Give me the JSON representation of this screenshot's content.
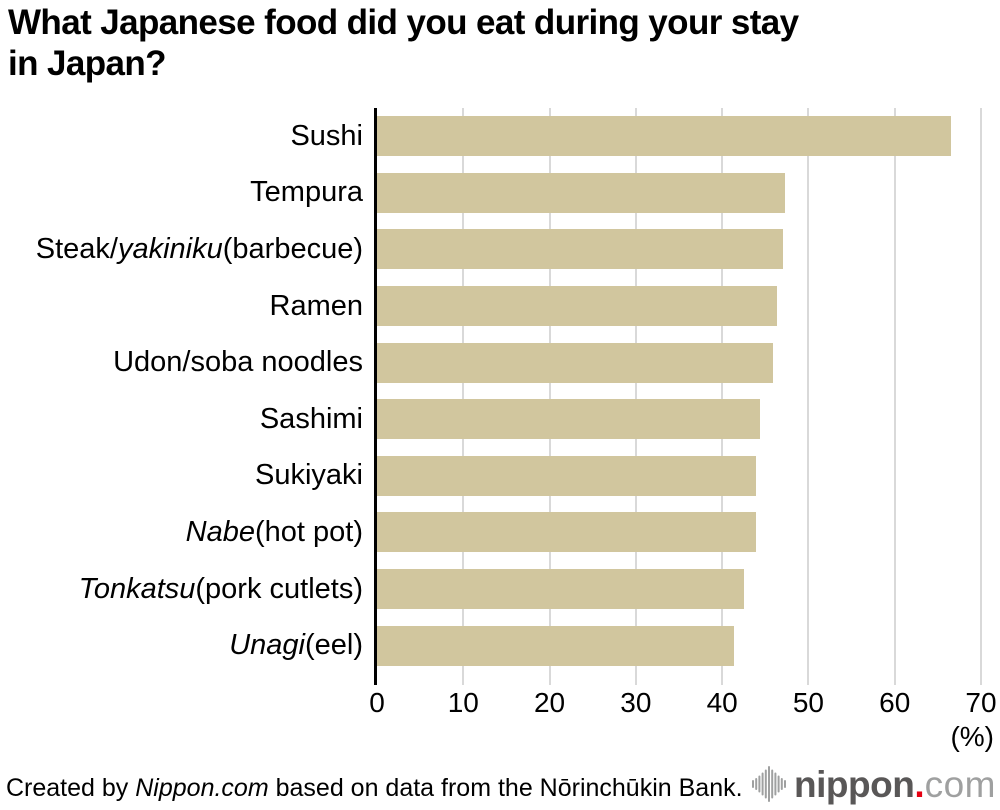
{
  "title_lines": [
    "What Japanese food did you eat during your stay",
    "in Japan?"
  ],
  "chart_data": {
    "type": "bar",
    "orientation": "horizontal",
    "title": "What Japanese food did you eat during your stay in Japan?",
    "xlabel": "(%)",
    "unit_label": "(%)",
    "xlim": [
      0,
      70
    ],
    "xticks": [
      0,
      10,
      20,
      30,
      40,
      50,
      60,
      70
    ],
    "grid": true,
    "legend": false,
    "bar_color": "#d1c69e",
    "gridline_color": "#d9d9d9",
    "axis_color": "#000000",
    "categories": [
      "Sushi",
      "Tempura",
      "Steak/yakiniku (barbecue)",
      "Ramen",
      "Udon/soba noodles",
      "Sashimi",
      "Sukiyaki",
      "Nabe (hot pot)",
      "Tonkatsu (pork cutlets)",
      "Unagi (eel)"
    ],
    "category_segments": [
      [
        {
          "text": "Sushi",
          "italic": false
        }
      ],
      [
        {
          "text": "Tempura",
          "italic": false
        }
      ],
      [
        {
          "text": "Steak/",
          "italic": false
        },
        {
          "text": "yakiniku",
          "italic": true
        },
        {
          "text": " (barbecue)",
          "italic": false
        }
      ],
      [
        {
          "text": "Ramen",
          "italic": false
        }
      ],
      [
        {
          "text": "Udon/soba noodles",
          "italic": false
        }
      ],
      [
        {
          "text": "Sashimi",
          "italic": false
        }
      ],
      [
        {
          "text": "Sukiyaki",
          "italic": false
        }
      ],
      [
        {
          "text": "Nabe",
          "italic": true
        },
        {
          "text": " (hot pot)",
          "italic": false
        }
      ],
      [
        {
          "text": "Tonkatsu",
          "italic": true
        },
        {
          "text": " (pork cutlets)",
          "italic": false
        }
      ],
      [
        {
          "text": "Unagi",
          "italic": true
        },
        {
          "text": " (eel)",
          "italic": false
        }
      ]
    ],
    "values": [
      66.5,
      47.3,
      47.0,
      46.4,
      45.9,
      44.4,
      43.9,
      43.9,
      42.5,
      41.4
    ]
  },
  "footer": {
    "segments": [
      {
        "text": "Created by ",
        "italic": false
      },
      {
        "text": "Nippon.com",
        "italic": true
      },
      {
        "text": " based on data from the Nōrinchūkin Bank.",
        "italic": false
      }
    ]
  },
  "logo": {
    "brand": "nippon.com",
    "text_main": "nippon",
    "text_dot": ".",
    "text_suffix": "com",
    "colors": {
      "text_main": "#595757",
      "dot": "#e60012",
      "text_suffix": "#9fa0a0",
      "mark": "#9fa0a0"
    }
  }
}
